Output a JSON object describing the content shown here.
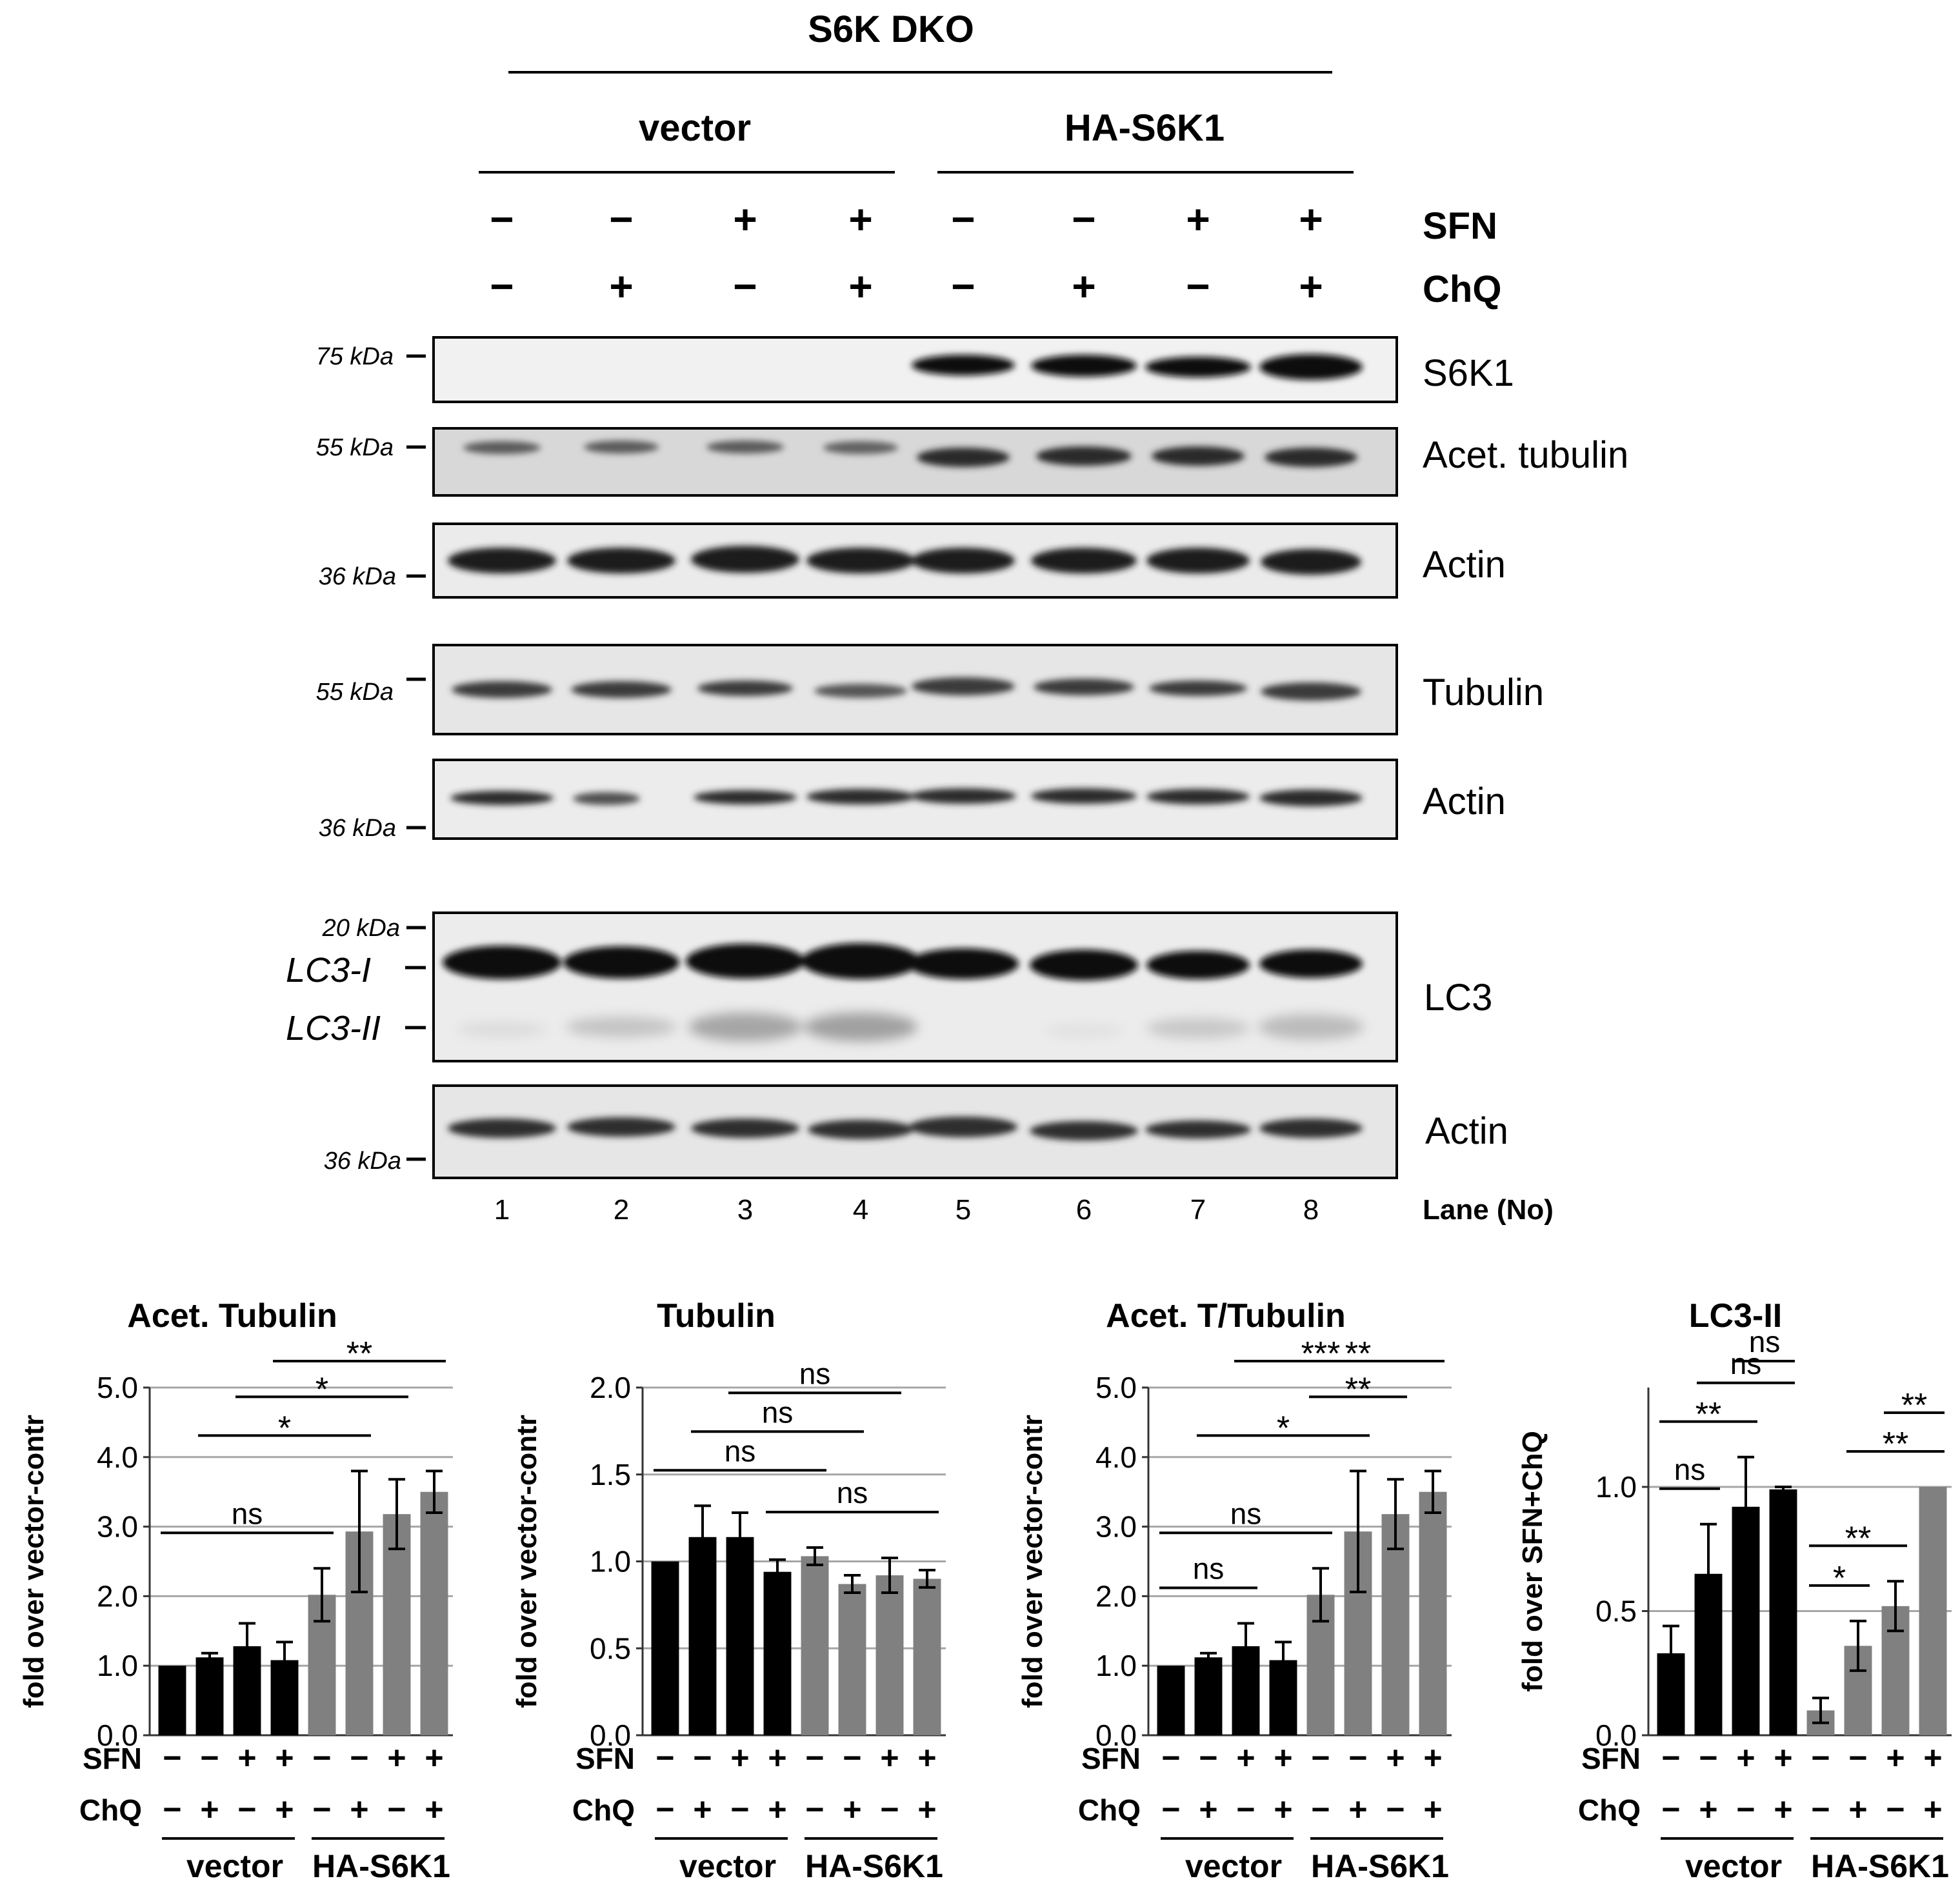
{
  "header": {
    "title": "S6K DKO",
    "group_vector": "vector",
    "group_ha": "HA-S6K1",
    "row_sfn": "SFN",
    "row_chq": "ChQ",
    "sfn_signs": [
      "−",
      "−",
      "+",
      "+",
      "−",
      "−",
      "+",
      "+"
    ],
    "chq_signs": [
      "−",
      "+",
      "−",
      "+",
      "−",
      "+",
      "−",
      "+"
    ]
  },
  "blots": [
    {
      "label": "S6K1",
      "marker": "75 kDa"
    },
    {
      "label": "Acet. tubulin",
      "marker": "55 kDa"
    },
    {
      "label": "Actin",
      "marker": "36 kDa"
    },
    {
      "label": "Tubulin",
      "marker": "55 kDa"
    },
    {
      "label": "Actin",
      "marker": "36 kDa"
    },
    {
      "label": "LC3",
      "marker": "20 kDa",
      "band_labels": [
        "LC3-I",
        "LC3-II"
      ]
    },
    {
      "label": "Actin",
      "marker": "36 kDa"
    }
  ],
  "lanes": {
    "numbers": [
      "1",
      "2",
      "3",
      "4",
      "5",
      "6",
      "7",
      "8"
    ],
    "caption": "Lane (No)"
  },
  "colors": {
    "vector": "#000000",
    "ha": "#808080",
    "grid": "#a6a6a6"
  },
  "chart_data": [
    {
      "type": "bar",
      "title": "Acet. Tubulin",
      "ylabel": "fold over vector-contr",
      "ylim": [
        0,
        5
      ],
      "yticks": [
        "0.0",
        "1.0",
        "2.0",
        "3.0",
        "4.0",
        "5.0"
      ],
      "sfn": [
        "−",
        "−",
        "+",
        "+",
        "−",
        "−",
        "+",
        "+"
      ],
      "chq": [
        "−",
        "+",
        "−",
        "+",
        "−",
        "+",
        "−",
        "+"
      ],
      "groups": [
        "vector",
        "HA-S6K1"
      ],
      "values": [
        1.0,
        1.12,
        1.28,
        1.08,
        2.02,
        2.93,
        3.18,
        3.5
      ],
      "errors": [
        0,
        0.06,
        0.33,
        0.26,
        0.38,
        0.87,
        0.5,
        0.3
      ],
      "sig": [
        {
          "label": "ns",
          "bars": [
            0,
            4
          ]
        },
        {
          "label": "*",
          "bars": [
            1,
            5
          ]
        },
        {
          "label": "*",
          "bars": [
            2,
            6
          ]
        },
        {
          "label": "**",
          "bars": [
            3,
            7
          ]
        }
      ]
    },
    {
      "type": "bar",
      "title": "Tubulin",
      "ylabel": "fold over vector-contr",
      "ylim": [
        0,
        2
      ],
      "yticks": [
        "0.0",
        "0.5",
        "1.0",
        "1.5",
        "2.0"
      ],
      "sfn": [
        "−",
        "−",
        "+",
        "+",
        "−",
        "−",
        "+",
        "+"
      ],
      "chq": [
        "−",
        "+",
        "−",
        "+",
        "−",
        "+",
        "−",
        "+"
      ],
      "groups": [
        "vector",
        "HA-S6K1"
      ],
      "values": [
        1.0,
        1.14,
        1.14,
        0.94,
        1.03,
        0.87,
        0.92,
        0.9
      ],
      "errors": [
        0,
        0.18,
        0.14,
        0.07,
        0.05,
        0.05,
        0.1,
        0.05
      ],
      "sig": [
        {
          "label": "ns",
          "bars": [
            0,
            4
          ]
        },
        {
          "label": "ns",
          "bars": [
            1,
            5
          ]
        },
        {
          "label": "ns",
          "bars": [
            2,
            6
          ]
        },
        {
          "label": "ns",
          "bars": [
            3,
            7
          ]
        }
      ]
    },
    {
      "type": "bar",
      "title": "Acet. T/Tubulin",
      "ylabel": "fold over vector-contr",
      "ylim": [
        0,
        5
      ],
      "yticks": [
        "0.0",
        "1.0",
        "2.0",
        "3.0",
        "4.0",
        "5.0"
      ],
      "sfn": [
        "−",
        "−",
        "+",
        "+",
        "−",
        "−",
        "+",
        "+"
      ],
      "chq": [
        "−",
        "+",
        "−",
        "+",
        "−",
        "+",
        "−",
        "+"
      ],
      "groups": [
        "vector",
        "HA-S6K1"
      ],
      "values": [
        1.0,
        1.12,
        1.28,
        1.08,
        2.02,
        2.93,
        3.18,
        3.5
      ],
      "errors": [
        0,
        0.06,
        0.33,
        0.26,
        0.38,
        0.87,
        0.5,
        0.3
      ],
      "sig": [
        {
          "label": "ns",
          "bars": [
            0,
            2
          ]
        },
        {
          "label": "ns",
          "bars": [
            0,
            4
          ]
        },
        {
          "label": "*",
          "bars": [
            1,
            5
          ]
        },
        {
          "label": "**",
          "bars": [
            4,
            6
          ]
        },
        {
          "label": "***",
          "bars": [
            2,
            6
          ]
        },
        {
          "label": "**",
          "bars": [
            3,
            7
          ]
        }
      ]
    },
    {
      "type": "bar",
      "title": "LC3-II",
      "ylabel": "fold over SFN+ChQ",
      "ylim": [
        0,
        1.4
      ],
      "yticks": [
        "0.0",
        "0.5",
        "1.0"
      ],
      "sfn": [
        "−",
        "−",
        "+",
        "+",
        "−",
        "−",
        "+",
        "+"
      ],
      "chq": [
        "−",
        "+",
        "−",
        "+",
        "−",
        "+",
        "−",
        "+"
      ],
      "groups": [
        "vector",
        "HA-S6K1"
      ],
      "values": [
        0.33,
        0.65,
        0.92,
        0.99,
        0.1,
        0.36,
        0.52,
        1.0
      ],
      "errors": [
        0.11,
        0.2,
        0.2,
        0.01,
        0.05,
        0.1,
        0.1,
        0
      ],
      "sig": [
        {
          "label": "ns",
          "bars": [
            0,
            1
          ]
        },
        {
          "label": "**",
          "bars": [
            0,
            2
          ]
        },
        {
          "label": "ns",
          "bars": [
            1,
            3
          ]
        },
        {
          "label": "ns",
          "bars": [
            2,
            3
          ]
        },
        {
          "label": "*",
          "bars": [
            4,
            5
          ]
        },
        {
          "label": "**",
          "bars": [
            4,
            6
          ]
        },
        {
          "label": "**",
          "bars": [
            5,
            7
          ]
        },
        {
          "label": "**",
          "bars": [
            6,
            7
          ]
        }
      ]
    }
  ]
}
